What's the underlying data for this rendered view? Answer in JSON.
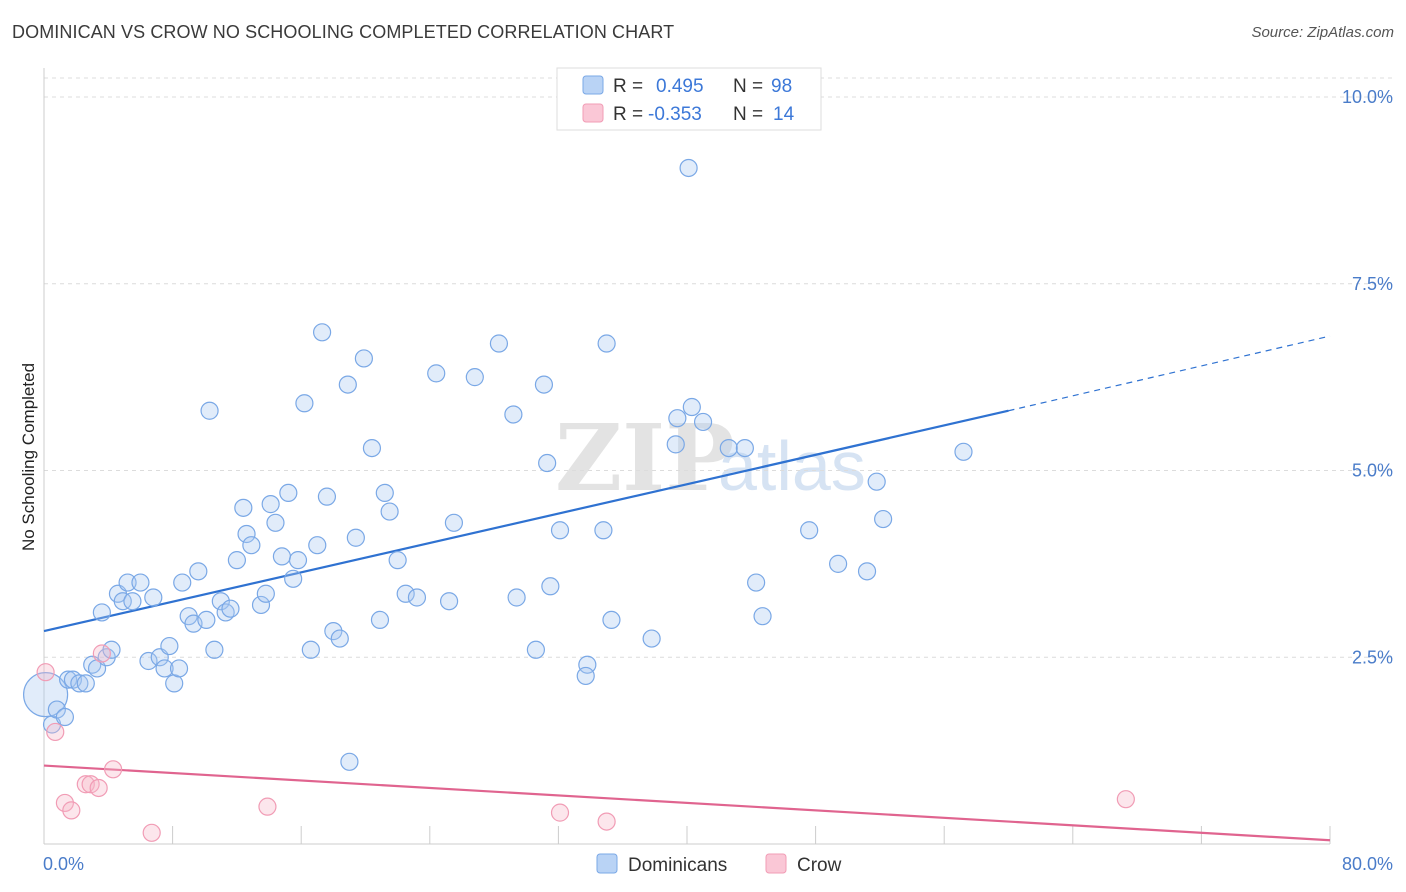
{
  "header": {
    "title": "DOMINICAN VS CROW NO SCHOOLING COMPLETED CORRELATION CHART",
    "source": "Source: ZipAtlas.com"
  },
  "watermark": {
    "zip": "ZIP",
    "atlas": "atlas"
  },
  "legend_top": {
    "rows": [
      {
        "r_label": "R =",
        "r_value": "0.495",
        "n_label": "N =",
        "n_value": "98",
        "color": "#a9c8f0"
      },
      {
        "r_label": "R =",
        "r_value": "-0.353",
        "n_label": "N =",
        "n_value": "14",
        "color": "#f6b7c9"
      }
    ]
  },
  "legend_bottom": {
    "items": [
      {
        "label": "Dominicans",
        "color": "#a9c8f0"
      },
      {
        "label": "Crow",
        "color": "#f6b7c9"
      }
    ]
  },
  "chart_data": {
    "type": "scatter",
    "title": "DOMINICAN VS CROW NO SCHOOLING COMPLETED CORRELATION CHART",
    "xlabel": "",
    "ylabel": "No Schooling Completed",
    "xlim": [
      0,
      80
    ],
    "ylim": [
      0,
      10.5
    ],
    "x_tick_labels": {
      "min": "0.0%",
      "max": "80.0%"
    },
    "y_ticks": [
      {
        "value": 2.5,
        "label": "2.5%"
      },
      {
        "value": 5.0,
        "label": "5.0%"
      },
      {
        "value": 7.5,
        "label": "7.5%"
      },
      {
        "value": 10.0,
        "label": "10.0%"
      }
    ],
    "series": [
      {
        "name": "Dominicans",
        "color": "#7aa8e6",
        "trend": {
          "x0": 0,
          "y0": 2.85,
          "x1": 60,
          "y1": 5.8,
          "dash_to_x": 80,
          "dash_to_y": 6.8
        },
        "points": [
          [
            0.1,
            2.0
          ],
          [
            0.5,
            1.6
          ],
          [
            0.8,
            1.8
          ],
          [
            1.3,
            1.7
          ],
          [
            1.5,
            2.2
          ],
          [
            1.8,
            2.2
          ],
          [
            2.2,
            2.15
          ],
          [
            2.6,
            2.15
          ],
          [
            3.0,
            2.4
          ],
          [
            3.3,
            2.35
          ],
          [
            3.6,
            3.1
          ],
          [
            3.9,
            2.5
          ],
          [
            4.2,
            2.6
          ],
          [
            4.6,
            3.35
          ],
          [
            4.9,
            3.25
          ],
          [
            5.2,
            3.5
          ],
          [
            5.5,
            3.25
          ],
          [
            6.0,
            3.5
          ],
          [
            6.5,
            2.45
          ],
          [
            6.8,
            3.3
          ],
          [
            7.2,
            2.5
          ],
          [
            7.5,
            2.35
          ],
          [
            7.8,
            2.65
          ],
          [
            8.1,
            2.15
          ],
          [
            8.4,
            2.35
          ],
          [
            8.6,
            3.5
          ],
          [
            9.0,
            3.05
          ],
          [
            9.3,
            2.95
          ],
          [
            9.6,
            3.65
          ],
          [
            10.1,
            3.0
          ],
          [
            10.3,
            5.8
          ],
          [
            10.6,
            2.6
          ],
          [
            11.0,
            3.25
          ],
          [
            11.3,
            3.1
          ],
          [
            11.6,
            3.15
          ],
          [
            12.0,
            3.8
          ],
          [
            12.4,
            4.5
          ],
          [
            12.6,
            4.15
          ],
          [
            12.9,
            4.0
          ],
          [
            13.5,
            3.2
          ],
          [
            13.8,
            3.35
          ],
          [
            14.1,
            4.55
          ],
          [
            14.4,
            4.3
          ],
          [
            14.8,
            3.85
          ],
          [
            15.2,
            4.7
          ],
          [
            15.5,
            3.55
          ],
          [
            15.8,
            3.8
          ],
          [
            16.2,
            5.9
          ],
          [
            16.6,
            2.6
          ],
          [
            17.0,
            4.0
          ],
          [
            17.3,
            6.85
          ],
          [
            17.6,
            4.65
          ],
          [
            18.0,
            2.85
          ],
          [
            18.4,
            2.75
          ],
          [
            18.9,
            6.15
          ],
          [
            19.0,
            1.1
          ],
          [
            19.4,
            4.1
          ],
          [
            19.9,
            6.5
          ],
          [
            20.4,
            5.3
          ],
          [
            20.9,
            3.0
          ],
          [
            21.2,
            4.7
          ],
          [
            21.5,
            4.45
          ],
          [
            22.0,
            3.8
          ],
          [
            22.5,
            3.35
          ],
          [
            23.2,
            3.3
          ],
          [
            24.4,
            6.3
          ],
          [
            25.2,
            3.25
          ],
          [
            25.5,
            4.3
          ],
          [
            26.8,
            6.25
          ],
          [
            28.3,
            6.7
          ],
          [
            29.2,
            5.75
          ],
          [
            29.4,
            3.3
          ],
          [
            30.6,
            2.6
          ],
          [
            31.1,
            6.15
          ],
          [
            31.3,
            5.1
          ],
          [
            31.5,
            3.45
          ],
          [
            32.1,
            4.2
          ],
          [
            33.8,
            2.4
          ],
          [
            33.7,
            2.25
          ],
          [
            34.8,
            4.2
          ],
          [
            35.0,
            6.7
          ],
          [
            35.3,
            3.0
          ],
          [
            37.8,
            2.75
          ],
          [
            39.3,
            5.35
          ],
          [
            39.4,
            5.7
          ],
          [
            40.1,
            9.05
          ],
          [
            40.3,
            5.85
          ],
          [
            41.0,
            5.65
          ],
          [
            42.6,
            5.3
          ],
          [
            43.6,
            5.3
          ],
          [
            44.3,
            3.5
          ],
          [
            44.7,
            3.05
          ],
          [
            47.6,
            4.2
          ],
          [
            49.4,
            3.75
          ],
          [
            51.2,
            3.65
          ],
          [
            51.8,
            4.85
          ],
          [
            52.2,
            4.35
          ],
          [
            57.2,
            5.25
          ]
        ]
      },
      {
        "name": "Crow",
        "color": "#f19cb5",
        "trend": {
          "x0": 0,
          "y0": 1.05,
          "x1": 80,
          "y1": 0.05
        },
        "points": [
          [
            0.1,
            2.3
          ],
          [
            0.7,
            1.5
          ],
          [
            1.3,
            0.55
          ],
          [
            1.7,
            0.45
          ],
          [
            2.6,
            0.8
          ],
          [
            2.9,
            0.8
          ],
          [
            3.4,
            0.75
          ],
          [
            3.6,
            2.55
          ],
          [
            4.3,
            1.0
          ],
          [
            6.7,
            0.15
          ],
          [
            13.9,
            0.5
          ],
          [
            32.1,
            0.42
          ],
          [
            35.0,
            0.3
          ],
          [
            67.3,
            0.6
          ]
        ]
      }
    ]
  }
}
